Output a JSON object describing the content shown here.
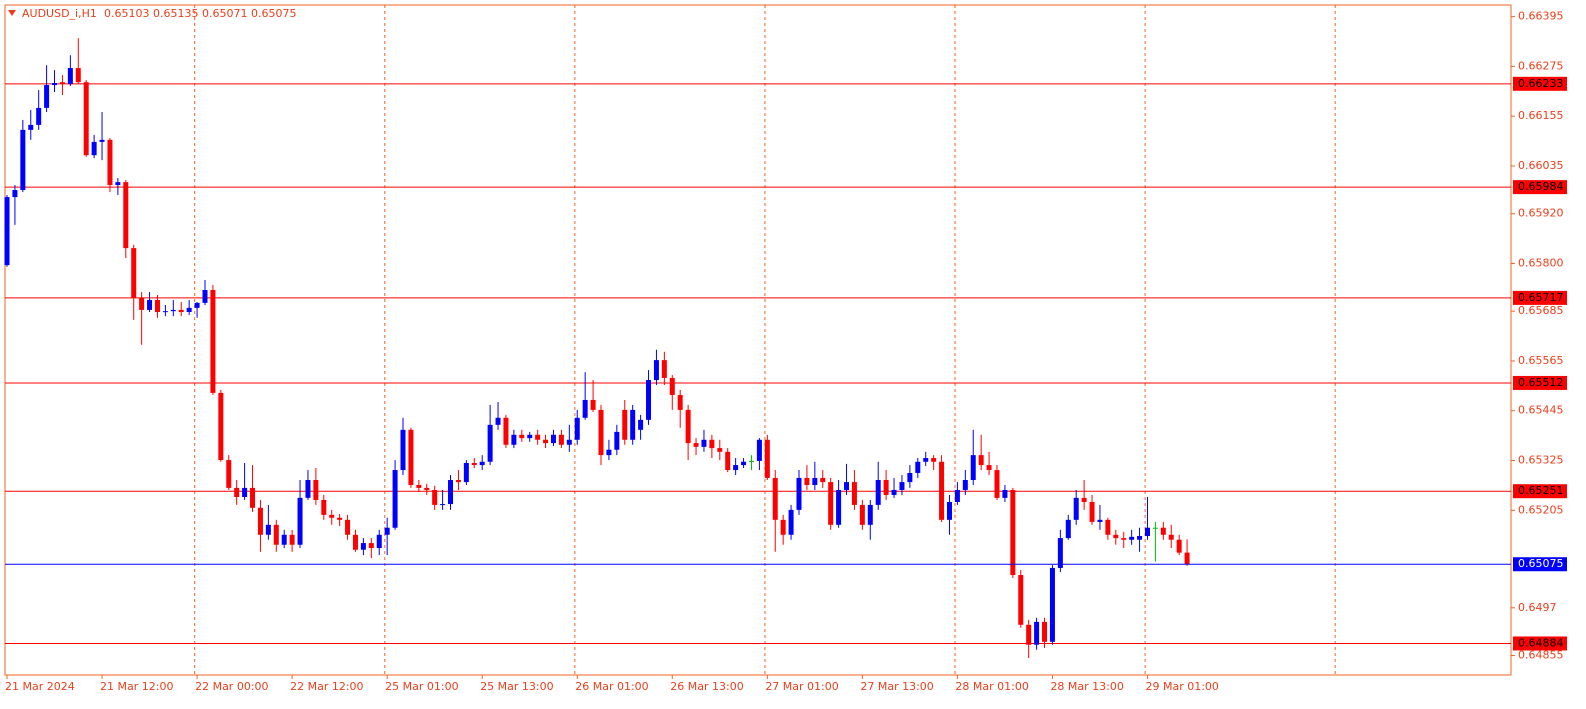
{
  "chart_data": {
    "type": "candlestick",
    "title": "AUDUSD_i,H1",
    "categories": [
      "21 Mar 2024",
      null,
      null,
      null,
      null,
      null,
      null,
      null,
      null,
      null,
      null,
      null,
      "21 Mar 12:00",
      null,
      null,
      null,
      null,
      null,
      null,
      null,
      null,
      null,
      null,
      null,
      "22 Mar 00:00",
      null,
      null,
      null,
      null,
      null,
      null,
      null,
      null,
      null,
      null,
      null,
      "22 Mar 12:00",
      null,
      null,
      null,
      null,
      null,
      null,
      null,
      null,
      null,
      null,
      null,
      "25 Mar 01:00",
      null,
      null,
      null,
      null,
      null,
      null,
      null,
      null,
      null,
      null,
      null,
      "25 Mar 13:00",
      null,
      null,
      null,
      null,
      null,
      null,
      null,
      null,
      null,
      null,
      null,
      "26 Mar 01:00",
      null,
      null,
      null,
      null,
      null,
      null,
      null,
      null,
      null,
      null,
      null,
      "26 Mar 13:00",
      null,
      null,
      null,
      null,
      null,
      null,
      null,
      null,
      null,
      null,
      null,
      "27 Mar 01:00",
      null,
      null,
      null,
      null,
      null,
      null,
      null,
      null,
      null,
      null,
      null,
      "27 Mar 13:00",
      null,
      null,
      null,
      null,
      null,
      null,
      null,
      null,
      null,
      null,
      null,
      "28 Mar 01:00",
      null,
      null,
      null,
      null,
      null,
      null,
      null,
      null,
      null,
      null,
      null,
      "28 Mar 13:00",
      null,
      null,
      null,
      null,
      null,
      null,
      null,
      null,
      null,
      null,
      null,
      "29 Mar 01:00",
      null,
      null,
      null,
      null,
      null
    ],
    "ohlc": [
      [
        0.65796,
        0.65965,
        0.65792,
        0.6596
      ],
      [
        0.6596,
        0.65989,
        0.65893,
        0.65977
      ],
      [
        0.65977,
        0.66146,
        0.65972,
        0.66122
      ],
      [
        0.66122,
        0.6617,
        0.66098,
        0.66134
      ],
      [
        0.66134,
        0.66218,
        0.66122,
        0.66175
      ],
      [
        0.66175,
        0.66278,
        0.66165,
        0.6623
      ],
      [
        0.6623,
        0.66266,
        0.66213,
        0.66235
      ],
      [
        0.66237,
        0.66254,
        0.66206,
        0.66233
      ],
      [
        0.66233,
        0.66302,
        0.66228,
        0.66271
      ],
      [
        0.66271,
        0.66343,
        0.66233,
        0.66237
      ],
      [
        0.66237,
        0.66242,
        0.66057,
        0.66061
      ],
      [
        0.66061,
        0.6611,
        0.66054,
        0.66093
      ],
      [
        0.66093,
        0.66165,
        0.66049,
        0.66098
      ],
      [
        0.66098,
        0.66102,
        0.65972,
        0.65989
      ],
      [
        0.65989,
        0.66006,
        0.65965,
        0.65996
      ],
      [
        0.65996,
        0.66001,
        0.65813,
        0.65837
      ],
      [
        0.65837,
        0.65845,
        0.65664,
        0.65717
      ],
      [
        0.65717,
        0.65731,
        0.65604,
        0.65688
      ],
      [
        0.65688,
        0.65731,
        0.65683,
        0.65712
      ],
      [
        0.65712,
        0.65724,
        0.65669,
        0.65683
      ],
      [
        0.65683,
        0.657,
        0.65673,
        0.65685
      ],
      [
        0.65685,
        0.65712,
        0.65673,
        0.65688
      ],
      [
        0.65688,
        0.65707,
        0.65673,
        0.65683
      ],
      [
        0.65683,
        0.65712,
        0.65676,
        0.65693
      ],
      [
        0.65693,
        0.65707,
        0.65669,
        0.65705
      ],
      [
        0.65705,
        0.6576,
        0.657,
        0.65736
      ],
      [
        0.65736,
        0.65748,
        0.65483,
        0.65488
      ],
      [
        0.65488,
        0.65495,
        0.65322,
        0.65326
      ],
      [
        0.65326,
        0.65338,
        0.65254,
        0.65259
      ],
      [
        0.65259,
        0.65278,
        0.65218,
        0.65237
      ],
      [
        0.65237,
        0.65319,
        0.6523,
        0.65259
      ],
      [
        0.65259,
        0.65314,
        0.65201,
        0.65211
      ],
      [
        0.65211,
        0.6523,
        0.65105,
        0.65146
      ],
      [
        0.65146,
        0.65218,
        0.65134,
        0.6517
      ],
      [
        0.6517,
        0.65182,
        0.65105,
        0.65122
      ],
      [
        0.65122,
        0.65158,
        0.65114,
        0.65146
      ],
      [
        0.65146,
        0.65158,
        0.65105,
        0.65122
      ],
      [
        0.65122,
        0.65278,
        0.65114,
        0.65235
      ],
      [
        0.65235,
        0.65302,
        0.6523,
        0.65278
      ],
      [
        0.65278,
        0.65307,
        0.65218,
        0.6523
      ],
      [
        0.6523,
        0.65242,
        0.65182,
        0.65194
      ],
      [
        0.65194,
        0.65206,
        0.6517,
        0.65187
      ],
      [
        0.65187,
        0.65196,
        0.65167,
        0.65182
      ],
      [
        0.65182,
        0.65194,
        0.65134,
        0.65146
      ],
      [
        0.65146,
        0.65158,
        0.65105,
        0.6511
      ],
      [
        0.6511,
        0.65138,
        0.65097,
        0.65126
      ],
      [
        0.65126,
        0.65138,
        0.6509,
        0.65114
      ],
      [
        0.65114,
        0.65158,
        0.65097,
        0.65146
      ],
      [
        0.65146,
        0.65187,
        0.65097,
        0.65163
      ],
      [
        0.65163,
        0.65326,
        0.65158,
        0.65302
      ],
      [
        0.65302,
        0.65428,
        0.6529,
        0.65399
      ],
      [
        0.65399,
        0.65404,
        0.65259,
        0.65266
      ],
      [
        0.65266,
        0.65278,
        0.65249,
        0.65259
      ],
      [
        0.65259,
        0.65269,
        0.65242,
        0.65254
      ],
      [
        0.65254,
        0.65264,
        0.65206,
        0.65218
      ],
      [
        0.65218,
        0.65254,
        0.65206,
        0.6522
      ],
      [
        0.6522,
        0.6529,
        0.65206,
        0.65278
      ],
      [
        0.65278,
        0.65302,
        0.65254,
        0.65273
      ],
      [
        0.65273,
        0.65326,
        0.65266,
        0.65319
      ],
      [
        0.65319,
        0.65331,
        0.65307,
        0.65314
      ],
      [
        0.65314,
        0.65338,
        0.65302,
        0.65322
      ],
      [
        0.65322,
        0.65459,
        0.65314,
        0.65411
      ],
      [
        0.65411,
        0.65466,
        0.65399,
        0.65428
      ],
      [
        0.65428,
        0.65435,
        0.65355,
        0.65363
      ],
      [
        0.65363,
        0.65399,
        0.65355,
        0.65387
      ],
      [
        0.65387,
        0.65399,
        0.6537,
        0.65379
      ],
      [
        0.65379,
        0.65394,
        0.6537,
        0.65387
      ],
      [
        0.65387,
        0.65399,
        0.65363,
        0.65375
      ],
      [
        0.65375,
        0.65387,
        0.65355,
        0.65367
      ],
      [
        0.65367,
        0.65399,
        0.6536,
        0.65387
      ],
      [
        0.65387,
        0.65399,
        0.65355,
        0.65363
      ],
      [
        0.65363,
        0.65411,
        0.65346,
        0.65375
      ],
      [
        0.65375,
        0.65447,
        0.65363,
        0.65428
      ],
      [
        0.65428,
        0.65538,
        0.65423,
        0.65471
      ],
      [
        0.65471,
        0.65519,
        0.65442,
        0.65447
      ],
      [
        0.65447,
        0.65459,
        0.65314,
        0.65338
      ],
      [
        0.65338,
        0.65375,
        0.65326,
        0.65351
      ],
      [
        0.65351,
        0.65411,
        0.65338,
        0.65394
      ],
      [
        0.65447,
        0.65471,
        0.65363,
        0.65375
      ],
      [
        0.65375,
        0.65459,
        0.65363,
        0.65447
      ],
      [
        0.65399,
        0.65435,
        0.65375,
        0.65423
      ],
      [
        0.65423,
        0.65543,
        0.65411,
        0.65519
      ],
      [
        0.65519,
        0.65592,
        0.65507,
        0.65567
      ],
      [
        0.65567,
        0.65587,
        0.65507,
        0.65524
      ],
      [
        0.65524,
        0.65531,
        0.65447,
        0.65483
      ],
      [
        0.65483,
        0.65495,
        0.65404,
        0.65447
      ],
      [
        0.65447,
        0.65459,
        0.65326,
        0.65367
      ],
      [
        0.65367,
        0.65379,
        0.65338,
        0.65358
      ],
      [
        0.65358,
        0.65399,
        0.65346,
        0.65375
      ],
      [
        0.65375,
        0.65387,
        0.65331,
        0.65355
      ],
      [
        0.65355,
        0.65375,
        0.65326,
        0.65346
      ],
      [
        0.65346,
        0.65355,
        0.65297,
        0.65302
      ],
      [
        0.65302,
        0.65331,
        0.6529,
        0.65314
      ],
      [
        0.65314,
        0.65331,
        0.65307,
        0.65322
      ],
      [
        0.65324,
        0.65338,
        0.65302,
        0.65324
      ],
      [
        0.65324,
        0.65379,
        0.65302,
        0.65375
      ],
      [
        0.65375,
        0.65387,
        0.65278,
        0.65283
      ],
      [
        0.65283,
        0.65302,
        0.65105,
        0.65182
      ],
      [
        0.65182,
        0.65194,
        0.65122,
        0.65146
      ],
      [
        0.65146,
        0.65218,
        0.65134,
        0.65206
      ],
      [
        0.65206,
        0.65302,
        0.65194,
        0.65283
      ],
      [
        0.65283,
        0.65314,
        0.65254,
        0.65266
      ],
      [
        0.65266,
        0.65322,
        0.65254,
        0.65283
      ],
      [
        0.65283,
        0.65302,
        0.65259,
        0.65273
      ],
      [
        0.65273,
        0.65283,
        0.65158,
        0.6517
      ],
      [
        0.6517,
        0.65278,
        0.65163,
        0.65254
      ],
      [
        0.65254,
        0.65317,
        0.65242,
        0.65273
      ],
      [
        0.65273,
        0.65302,
        0.65206,
        0.65218
      ],
      [
        0.65218,
        0.6523,
        0.65158,
        0.6517
      ],
      [
        0.6517,
        0.6523,
        0.65134,
        0.65218
      ],
      [
        0.65218,
        0.65322,
        0.65206,
        0.65278
      ],
      [
        0.65278,
        0.65302,
        0.6523,
        0.65242
      ],
      [
        0.65242,
        0.65283,
        0.65235,
        0.65254
      ],
      [
        0.65254,
        0.6529,
        0.65242,
        0.65273
      ],
      [
        0.65273,
        0.65314,
        0.65259,
        0.65295
      ],
      [
        0.65295,
        0.65331,
        0.65283,
        0.65322
      ],
      [
        0.65322,
        0.65346,
        0.65312,
        0.65331
      ],
      [
        0.65331,
        0.65338,
        0.65302,
        0.65322
      ],
      [
        0.65322,
        0.65338,
        0.65177,
        0.65182
      ],
      [
        0.65182,
        0.65242,
        0.65146,
        0.65225
      ],
      [
        0.65225,
        0.65273,
        0.65218,
        0.65254
      ],
      [
        0.65254,
        0.65302,
        0.65242,
        0.65278
      ],
      [
        0.65278,
        0.65399,
        0.65266,
        0.65338
      ],
      [
        0.65338,
        0.65387,
        0.65302,
        0.65314
      ],
      [
        0.65314,
        0.65346,
        0.6529,
        0.65302
      ],
      [
        0.65302,
        0.65314,
        0.6523,
        0.65235
      ],
      [
        0.65235,
        0.65266,
        0.65225,
        0.65254
      ],
      [
        0.65254,
        0.65259,
        0.65042,
        0.65049
      ],
      [
        0.65049,
        0.65061,
        0.64922,
        0.64929
      ],
      [
        0.64929,
        0.64941,
        0.64849,
        0.64881
      ],
      [
        0.64881,
        0.64946,
        0.64869,
        0.64936
      ],
      [
        0.64936,
        0.64946,
        0.64873,
        0.64888
      ],
      [
        0.64888,
        0.65073,
        0.64881,
        0.65066
      ],
      [
        0.65066,
        0.65158,
        0.65056,
        0.65138
      ],
      [
        0.65138,
        0.65194,
        0.65134,
        0.65182
      ],
      [
        0.65182,
        0.65254,
        0.6517,
        0.65235
      ],
      [
        0.65235,
        0.65278,
        0.65206,
        0.65225
      ],
      [
        0.65225,
        0.65242,
        0.6517,
        0.65177
      ],
      [
        0.65177,
        0.65218,
        0.65158,
        0.65182
      ],
      [
        0.65182,
        0.65187,
        0.65134,
        0.65146
      ],
      [
        0.65146,
        0.65158,
        0.65122,
        0.65138
      ],
      [
        0.65138,
        0.65153,
        0.65114,
        0.65134
      ],
      [
        0.65134,
        0.65158,
        0.65122,
        0.65141
      ],
      [
        0.65134,
        0.65163,
        0.65105,
        0.65143
      ],
      [
        0.65143,
        0.65237,
        0.65134,
        0.65163
      ],
      [
        0.65163,
        0.65177,
        0.65081,
        0.65163
      ],
      [
        0.65163,
        0.65177,
        0.65134,
        0.65146
      ],
      [
        0.65146,
        0.6517,
        0.65114,
        0.65134
      ],
      [
        0.65134,
        0.65146,
        0.65097,
        0.65103
      ],
      [
        0.65103,
        0.65135,
        0.65071,
        0.65075
      ]
    ],
    "up_color": "#0000ff",
    "down_color": "#ff0000",
    "doji_color": "#00c000",
    "ylim": [
      0.64808,
      0.66423
    ],
    "yticks": [
      0.66395,
      0.66275,
      0.66155,
      0.66035,
      {
        "value": 0.6592,
        "label": "0.65920"
      },
      {
        "value": 0.658,
        "label": "0.65800"
      },
      0.65685,
      0.65565,
      0.65445,
      0.65325,
      0.65205,
      0.6497,
      0.64855
    ],
    "levels": [
      {
        "value": 0.66233,
        "color": "#ff0000"
      },
      {
        "value": 0.65984,
        "color": "#ff0000"
      },
      {
        "value": 0.65717,
        "color": "#ff0000"
      },
      {
        "value": 0.65512,
        "color": "#ff0000"
      },
      {
        "value": 0.65251,
        "color": "#ff0000"
      },
      {
        "value": 0.64884,
        "color": "#ff0000"
      }
    ],
    "bid_color": "#0000ff"
  }
}
